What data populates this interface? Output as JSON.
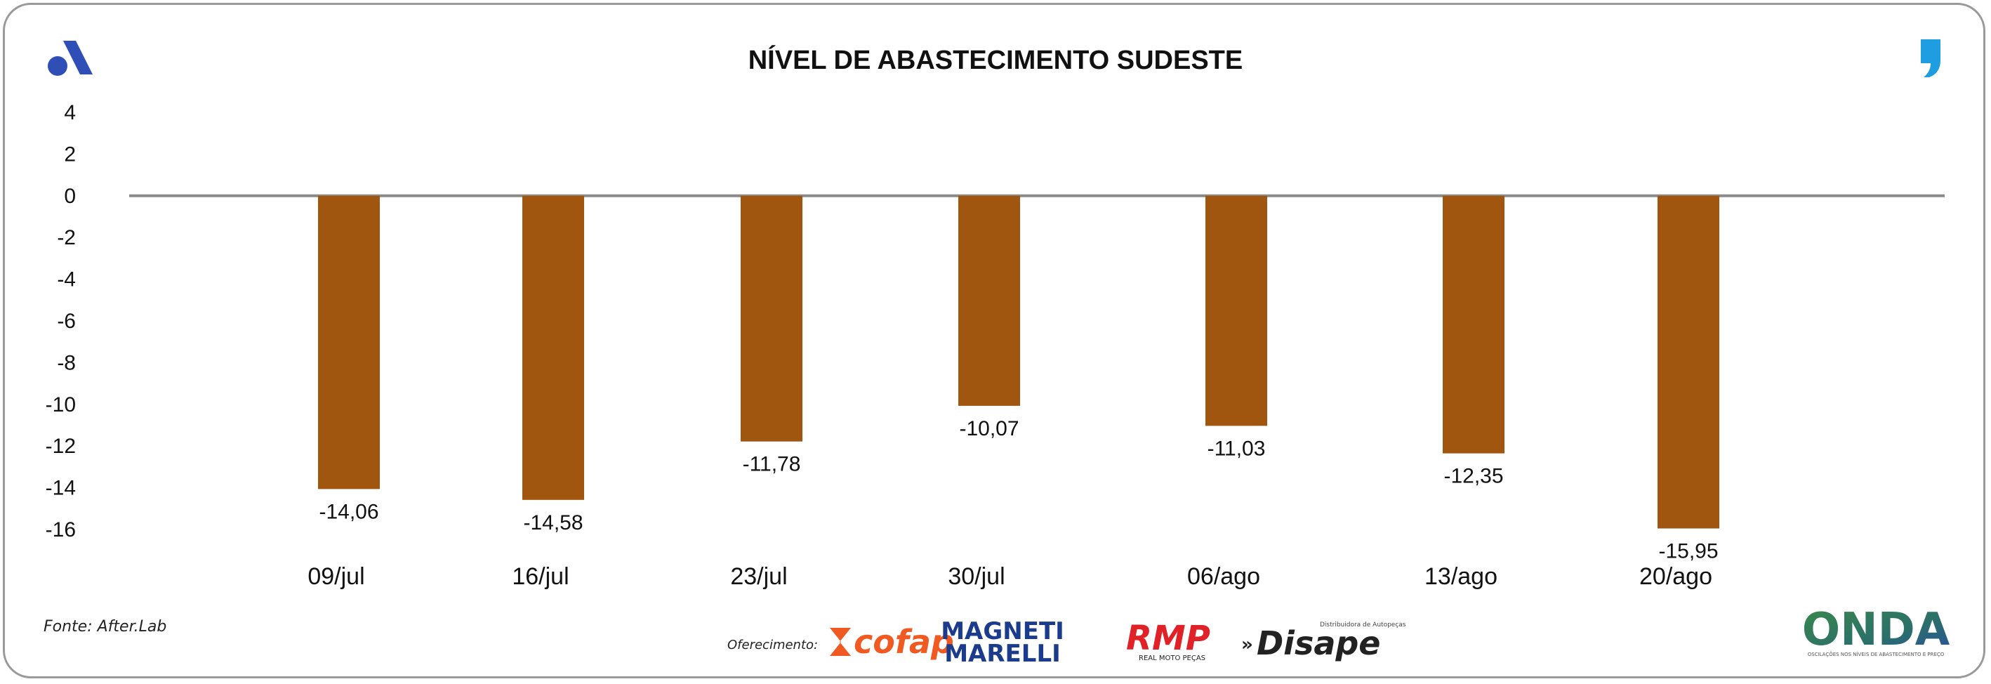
{
  "chart_data": {
    "type": "bar",
    "title": "NÍVEL DE ABASTECIMENTO SUDESTE",
    "categories": [
      "09/jul",
      "16/jul",
      "23/jul",
      "30/jul",
      "06/ago",
      "13/ago",
      "20/ago"
    ],
    "values": [
      -14.06,
      -14.58,
      -11.78,
      -10.07,
      -11.03,
      -12.35,
      -15.95
    ],
    "value_labels": [
      "-14,06",
      "-14,58",
      "-11,78",
      "-10,07",
      "-11,03",
      "-12,35",
      "-15,95"
    ],
    "y_ticks": [
      4,
      2,
      0,
      -2,
      -4,
      -6,
      -8,
      -10,
      -12,
      -14,
      -16
    ],
    "ylim": [
      -16,
      4
    ],
    "xlabel": "",
    "ylabel": "",
    "grid": false,
    "bar_color": "#a0560f"
  },
  "footer": {
    "source": "Fonte: After.Lab",
    "sponsor_label": "Oferecimento:"
  },
  "logos": {
    "top_left": "a-logo-icon",
    "top_right": "comma-logo-icon",
    "cofap": "cofap",
    "magneti_top": "MAGNETI",
    "magneti_bottom": "MARELLI",
    "rmp": "RMP",
    "rmp_sub": "REAL MOTO PEÇAS",
    "disape": "Disape",
    "disape_sub": "Distribuidora de Autopeças",
    "onda": "ONDA",
    "onda_sub": "OSCILAÇÕES NOS NÍVEIS DE ABASTECIMENTO E PREÇO"
  }
}
